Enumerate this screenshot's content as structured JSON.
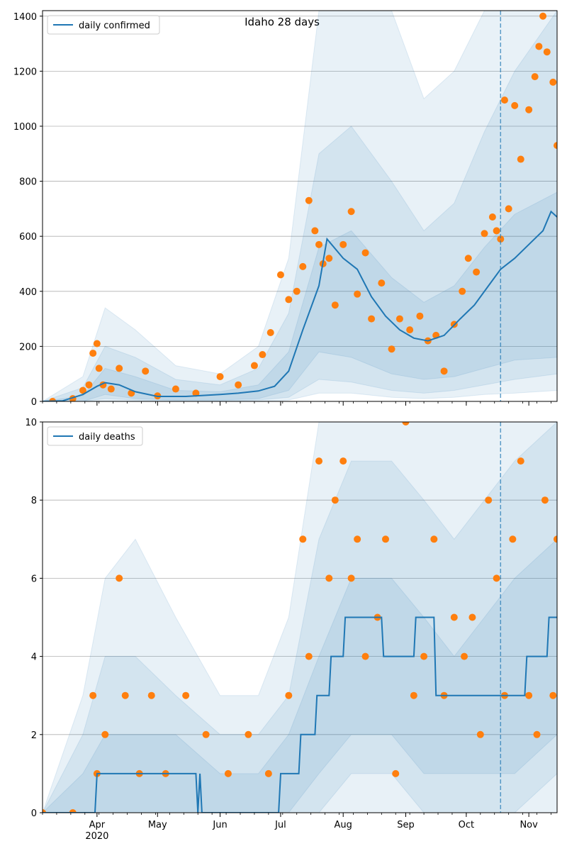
{
  "figure_title": "Idaho 28 days",
  "colors": {
    "line": "#1f77b4",
    "points": "#ff7f0e",
    "band": "#1f77b4",
    "grid": "#b0b0b0",
    "vline": "#1f77b4"
  },
  "x_axis": {
    "month_labels": [
      "Apr",
      "May",
      "Jun",
      "Jul",
      "Aug",
      "Sep",
      "Oct",
      "Nov"
    ],
    "year_label": "2020"
  },
  "chart_data": [
    {
      "type": "line",
      "legend": "daily confirmed",
      "legend_position": "top-left",
      "grid": true,
      "xlim": [
        "2020-03-05",
        "2020-11-15"
      ],
      "ylim": [
        0,
        1420
      ],
      "yticks": [
        0,
        200,
        400,
        600,
        800,
        1000,
        1200,
        1400
      ],
      "forecast_start": "2020-10-18",
      "series": [
        {
          "kind": "line",
          "x": [
            "2020-03-05",
            "2020-03-15",
            "2020-03-25",
            "2020-04-01",
            "2020-04-05",
            "2020-04-12",
            "2020-04-20",
            "2020-05-01",
            "2020-05-15",
            "2020-06-01",
            "2020-06-10",
            "2020-06-20",
            "2020-06-28",
            "2020-07-05",
            "2020-07-12",
            "2020-07-20",
            "2020-07-24",
            "2020-08-01",
            "2020-08-08",
            "2020-08-15",
            "2020-08-22",
            "2020-08-29",
            "2020-09-05",
            "2020-09-12",
            "2020-09-20",
            "2020-09-28",
            "2020-10-05",
            "2020-10-12",
            "2020-10-18",
            "2020-10-25",
            "2020-11-01",
            "2020-11-08",
            "2020-11-12",
            "2020-11-15"
          ],
          "y": [
            0,
            2,
            25,
            55,
            68,
            60,
            35,
            18,
            18,
            25,
            30,
            38,
            55,
            110,
            260,
            420,
            590,
            520,
            480,
            380,
            310,
            260,
            230,
            220,
            240,
            300,
            350,
            420,
            480,
            520,
            570,
            620,
            690,
            670
          ]
        },
        {
          "kind": "points",
          "x": [
            "2020-03-10",
            "2020-03-20",
            "2020-03-25",
            "2020-03-28",
            "2020-03-30",
            "2020-04-01",
            "2020-04-02",
            "2020-04-04",
            "2020-04-08",
            "2020-04-12",
            "2020-04-18",
            "2020-04-25",
            "2020-05-01",
            "2020-05-10",
            "2020-05-20",
            "2020-06-01",
            "2020-06-10",
            "2020-06-18",
            "2020-06-22",
            "2020-06-26",
            "2020-07-01",
            "2020-07-05",
            "2020-07-09",
            "2020-07-12",
            "2020-07-15",
            "2020-07-18",
            "2020-07-20",
            "2020-07-22",
            "2020-07-25",
            "2020-07-28",
            "2020-08-01",
            "2020-08-05",
            "2020-08-08",
            "2020-08-12",
            "2020-08-15",
            "2020-08-20",
            "2020-08-25",
            "2020-08-29",
            "2020-09-03",
            "2020-09-08",
            "2020-09-12",
            "2020-09-16",
            "2020-09-20",
            "2020-09-25",
            "2020-09-29",
            "2020-10-02",
            "2020-10-06",
            "2020-10-10",
            "2020-10-14",
            "2020-10-16",
            "2020-10-18",
            "2020-10-20",
            "2020-10-22",
            "2020-10-25",
            "2020-10-28",
            "2020-11-01",
            "2020-11-04",
            "2020-11-06",
            "2020-11-08",
            "2020-11-10",
            "2020-11-13",
            "2020-11-15"
          ],
          "y": [
            0,
            10,
            40,
            60,
            175,
            210,
            120,
            60,
            45,
            120,
            30,
            110,
            20,
            45,
            30,
            90,
            60,
            130,
            170,
            250,
            460,
            370,
            400,
            490,
            730,
            620,
            570,
            500,
            520,
            350,
            570,
            690,
            390,
            540,
            300,
            430,
            190,
            300,
            260,
            310,
            220,
            240,
            110,
            280,
            400,
            520,
            470,
            610,
            670,
            620,
            590,
            1095,
            700,
            1075,
            880,
            1060,
            1180,
            1290,
            1400,
            1270,
            1160,
            930
          ]
        }
      ],
      "bands": [
        {
          "x": [
            "2020-03-05",
            "2020-03-25",
            "2020-04-05",
            "2020-04-20",
            "2020-05-10",
            "2020-06-01",
            "2020-06-20",
            "2020-07-05",
            "2020-07-20",
            "2020-08-05",
            "2020-08-25",
            "2020-09-10",
            "2020-09-25",
            "2020-10-10",
            "2020-10-25",
            "2020-11-15"
          ],
          "low": [
            0,
            0,
            25,
            10,
            5,
            5,
            10,
            40,
            180,
            160,
            100,
            80,
            90,
            120,
            150,
            160
          ],
          "high": [
            0,
            20,
            120,
            90,
            40,
            35,
            60,
            180,
            560,
            620,
            450,
            360,
            420,
            560,
            680,
            760
          ]
        },
        {
          "x": [
            "2020-03-05",
            "2020-03-25",
            "2020-04-05",
            "2020-04-20",
            "2020-05-10",
            "2020-06-01",
            "2020-06-20",
            "2020-07-05",
            "2020-07-20",
            "2020-08-05",
            "2020-08-25",
            "2020-09-10",
            "2020-09-25",
            "2020-10-10",
            "2020-10-25",
            "2020-11-15"
          ],
          "low": [
            0,
            0,
            10,
            5,
            2,
            2,
            5,
            15,
            80,
            70,
            40,
            30,
            40,
            60,
            80,
            100
          ],
          "high": [
            0,
            50,
            200,
            160,
            80,
            60,
            120,
            320,
            900,
            1000,
            800,
            620,
            720,
            980,
            1200,
            1420
          ]
        },
        {
          "x": [
            "2020-03-05",
            "2020-03-25",
            "2020-04-05",
            "2020-04-20",
            "2020-05-10",
            "2020-06-01",
            "2020-06-20",
            "2020-07-05",
            "2020-07-20",
            "2020-08-05",
            "2020-08-25",
            "2020-09-10",
            "2020-09-25",
            "2020-10-10",
            "2020-10-25",
            "2020-11-15"
          ],
          "low": [
            0,
            0,
            2,
            1,
            0,
            0,
            1,
            5,
            30,
            30,
            15,
            10,
            15,
            25,
            30,
            40
          ],
          "high": [
            0,
            90,
            340,
            260,
            130,
            100,
            200,
            520,
            1420,
            1420,
            1420,
            1100,
            1200,
            1420,
            1420,
            1420
          ]
        }
      ]
    },
    {
      "type": "line",
      "legend": "daily deaths",
      "legend_position": "top-left",
      "grid": true,
      "xlim": [
        "2020-03-05",
        "2020-11-15"
      ],
      "ylim": [
        0,
        10
      ],
      "yticks": [
        0,
        2,
        4,
        6,
        8,
        10
      ],
      "forecast_start": "2020-10-18",
      "series": [
        {
          "kind": "line",
          "x": [
            "2020-03-05",
            "2020-03-31",
            "2020-04-01",
            "2020-04-02",
            "2020-04-10",
            "2020-05-20",
            "2020-05-21",
            "2020-05-22",
            "2020-05-23",
            "2020-06-30",
            "2020-07-01",
            "2020-07-10",
            "2020-07-11",
            "2020-07-18",
            "2020-07-19",
            "2020-07-25",
            "2020-07-26",
            "2020-08-01",
            "2020-08-02",
            "2020-08-20",
            "2020-08-21",
            "2020-09-05",
            "2020-09-06",
            "2020-09-15",
            "2020-09-16",
            "2020-09-30",
            "2020-10-01",
            "2020-10-20",
            "2020-10-21",
            "2020-10-30",
            "2020-10-31",
            "2020-11-10",
            "2020-11-11",
            "2020-11-15"
          ],
          "y": [
            0,
            0,
            1,
            1,
            1,
            1,
            0,
            1,
            0,
            0,
            1,
            1,
            2,
            2,
            3,
            3,
            4,
            4,
            5,
            5,
            4,
            4,
            5,
            5,
            3,
            3,
            3,
            3,
            3,
            3,
            4,
            4,
            5,
            5
          ]
        },
        {
          "kind": "points",
          "x": [
            "2020-03-05",
            "2020-03-20",
            "2020-03-30",
            "2020-04-01",
            "2020-04-05",
            "2020-04-12",
            "2020-04-15",
            "2020-04-22",
            "2020-04-28",
            "2020-05-05",
            "2020-05-15",
            "2020-05-25",
            "2020-06-05",
            "2020-06-15",
            "2020-06-25",
            "2020-07-05",
            "2020-07-12",
            "2020-07-15",
            "2020-07-20",
            "2020-07-25",
            "2020-07-28",
            "2020-08-01",
            "2020-08-05",
            "2020-08-08",
            "2020-08-12",
            "2020-08-18",
            "2020-08-22",
            "2020-08-27",
            "2020-09-01",
            "2020-09-05",
            "2020-09-10",
            "2020-09-15",
            "2020-09-20",
            "2020-09-25",
            "2020-09-30",
            "2020-10-04",
            "2020-10-08",
            "2020-10-12",
            "2020-10-16",
            "2020-10-20",
            "2020-10-24",
            "2020-10-28",
            "2020-11-01",
            "2020-11-05",
            "2020-11-09",
            "2020-11-13",
            "2020-11-15"
          ],
          "y": [
            0,
            0,
            3,
            1,
            2,
            6,
            3,
            1,
            3,
            1,
            3,
            2,
            1,
            2,
            1,
            3,
            7,
            4,
            9,
            6,
            8,
            9,
            6,
            7,
            4,
            5,
            7,
            1,
            10,
            3,
            4,
            7,
            3,
            5,
            4,
            5,
            2,
            8,
            6,
            3,
            7,
            9,
            3,
            2,
            8,
            3,
            7
          ]
        }
      ],
      "bands": [
        {
          "x": [
            "2020-03-05",
            "2020-03-25",
            "2020-04-05",
            "2020-04-20",
            "2020-05-10",
            "2020-06-01",
            "2020-06-20",
            "2020-07-05",
            "2020-07-20",
            "2020-08-05",
            "2020-08-25",
            "2020-09-10",
            "2020-09-25",
            "2020-10-10",
            "2020-10-25",
            "2020-11-15"
          ],
          "low": [
            0,
            0,
            0,
            0,
            0,
            0,
            0,
            0,
            1,
            2,
            2,
            1,
            1,
            1,
            1,
            2
          ],
          "high": [
            0,
            1,
            2,
            2,
            2,
            1,
            1,
            2,
            4,
            6,
            6,
            5,
            4,
            5,
            6,
            7
          ]
        },
        {
          "x": [
            "2020-03-05",
            "2020-03-25",
            "2020-04-05",
            "2020-04-20",
            "2020-05-10",
            "2020-06-01",
            "2020-06-20",
            "2020-07-05",
            "2020-07-20",
            "2020-08-05",
            "2020-08-25",
            "2020-09-10",
            "2020-09-25",
            "2020-10-10",
            "2020-10-25",
            "2020-11-15"
          ],
          "low": [
            0,
            0,
            0,
            0,
            0,
            0,
            0,
            0,
            0,
            1,
            1,
            0,
            0,
            0,
            0,
            1
          ],
          "high": [
            0,
            2,
            4,
            4,
            3,
            2,
            2,
            3,
            7,
            9,
            9,
            8,
            7,
            8,
            9,
            10
          ]
        },
        {
          "x": [
            "2020-03-05",
            "2020-03-25",
            "2020-04-05",
            "2020-04-20",
            "2020-05-10",
            "2020-06-01",
            "2020-06-20",
            "2020-07-05",
            "2020-07-20",
            "2020-08-05",
            "2020-08-25",
            "2020-09-10",
            "2020-09-25",
            "2020-10-10",
            "2020-10-25",
            "2020-11-15"
          ],
          "low": [
            0,
            0,
            0,
            0,
            0,
            0,
            0,
            0,
            0,
            0,
            0,
            0,
            0,
            0,
            0,
            0
          ],
          "high": [
            0,
            3,
            6,
            7,
            5,
            3,
            3,
            5,
            10,
            10,
            10,
            10,
            10,
            10,
            10,
            10
          ]
        }
      ]
    }
  ]
}
